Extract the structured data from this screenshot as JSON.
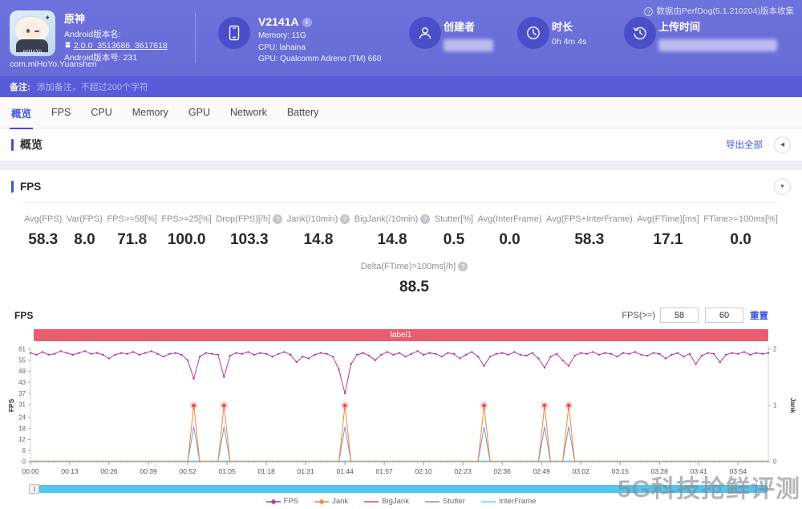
{
  "header": {
    "app": {
      "name": "原神",
      "version_label": "Android版本名:",
      "version_value": "2.0.0_3513686_3617618",
      "build_label": "Android版本号: 231",
      "package": "com.miHoYo.Yuanshen",
      "icon_brand": "miHoYo"
    },
    "device": {
      "model": "V2141A",
      "memory": "Memory: 11G",
      "cpu": "CPU: lahaina",
      "gpu": "GPU: Qualcomm Adreno (TM) 660"
    },
    "creator_label": "创建者",
    "duration_label": "时长",
    "duration_value": "0h 4m 4s",
    "upload_label": "上传时间",
    "source_note": "数据由PerfDog(5.1.210204)版本收集"
  },
  "remark": {
    "label": "备注:",
    "placeholder": "添加备注，不超过200个字符"
  },
  "tabs": [
    {
      "label": "概览",
      "active": true
    },
    {
      "label": "FPS",
      "active": false
    },
    {
      "label": "CPU",
      "active": false
    },
    {
      "label": "Memory",
      "active": false
    },
    {
      "label": "GPU",
      "active": false
    },
    {
      "label": "Network",
      "active": false
    },
    {
      "label": "Battery",
      "active": false
    }
  ],
  "overview": {
    "title": "概览",
    "export_label": "导出全部"
  },
  "fps_section": {
    "title": "FPS",
    "stats": [
      {
        "label": "Avg(FPS)",
        "value": "58.3",
        "help": false
      },
      {
        "label": "Var(FPS)",
        "value": "8.0",
        "help": false
      },
      {
        "label": "FPS>=58[%]",
        "value": "71.8",
        "help": false
      },
      {
        "label": "FPS>=25[%]",
        "value": "100.0",
        "help": false
      },
      {
        "label": "Drop(FPS)[/h]",
        "value": "103.3",
        "help": true
      },
      {
        "label": "Jank(/10min)",
        "value": "14.8",
        "help": true
      },
      {
        "label": "BigJank(/10min)",
        "value": "14.8",
        "help": true
      },
      {
        "label": "Stutter[%]",
        "value": "0.5",
        "help": false
      },
      {
        "label": "Avg(InterFrame)",
        "value": "0.0",
        "help": false
      },
      {
        "label": "Avg(FPS+InterFrame)",
        "value": "58.3",
        "help": false
      },
      {
        "label": "Avg(FTime)[ms]",
        "value": "17.1",
        "help": false
      },
      {
        "label": "FTime>=100ms[%]",
        "value": "0.0",
        "help": false
      }
    ],
    "stats_row2": [
      {
        "label": "Delta(FTime)>100ms[/h]",
        "value": "88.5",
        "help": true
      }
    ]
  },
  "chart": {
    "title": "FPS",
    "threshold_label": "FPS(>=)",
    "threshold_low": "58",
    "threshold_high": "60",
    "reset_label": "重置",
    "band_label": "label1",
    "band_color": "#e85e70",
    "scrollbar_color": "#54c5ee"
  },
  "chart_data": {
    "type": "line",
    "title": "FPS / Jank over session time",
    "x_unit": "seconds",
    "x_interval": 2,
    "x_max": 244,
    "x_tick_interval": 13,
    "x_tick_labels": [
      "00:00",
      "00:13",
      "00:26",
      "00:39",
      "00:52",
      "01:05",
      "01:18",
      "01:31",
      "01:44",
      "01:57",
      "02:10",
      "02:23",
      "02:36",
      "02:49",
      "03:02",
      "03:15",
      "03:28",
      "03:41",
      "03:54"
    ],
    "left_axis": {
      "label": "FPS",
      "max": 61,
      "ticks": [
        0,
        6,
        12,
        18,
        24,
        31,
        37,
        43,
        49,
        55,
        61
      ]
    },
    "right_axis": {
      "label": "Jank",
      "max": 2,
      "ticks": [
        0,
        1,
        2
      ]
    },
    "series": [
      {
        "name": "FPS",
        "color": "#b23a9c",
        "axis": "left",
        "marker": "diamond",
        "values": [
          59,
          58,
          59.5,
          58,
          58.5,
          60,
          59,
          58,
          59,
          60,
          58.5,
          59,
          58,
          56,
          58,
          59,
          58.5,
          59.5,
          58,
          59,
          60,
          58.5,
          57,
          58.5,
          59,
          58,
          55,
          45,
          57,
          59,
          58.5,
          58,
          46,
          57.5,
          59,
          58.5,
          59.5,
          58,
          59,
          58.5,
          57,
          58.5,
          59.5,
          58,
          54,
          57,
          56,
          58,
          59,
          58.5,
          57,
          50,
          37,
          53,
          58,
          59,
          57.5,
          55,
          58,
          59.5,
          58,
          59,
          57,
          58.5,
          60,
          58,
          59,
          58.5,
          57,
          59,
          58.5,
          56,
          58,
          59.5,
          57,
          52,
          57,
          58.5,
          59,
          58,
          59.5,
          58,
          57.5,
          59,
          56,
          51,
          57,
          58.5,
          55,
          52,
          57.5,
          59,
          58.5,
          59.5,
          58,
          59,
          58.5,
          57,
          59,
          58.5,
          59.5,
          58,
          57.5,
          59,
          58.5,
          56,
          58,
          59,
          57,
          58.5,
          53,
          57.5,
          59,
          58.5,
          54,
          58,
          59,
          58.5,
          59.5,
          58,
          59,
          58.5,
          59
        ]
      },
      {
        "name": "Jank",
        "color": "#f0883f",
        "axis": "right",
        "marker": "diamond",
        "spike_indices": [
          27,
          32,
          52,
          75,
          85,
          89
        ],
        "spike_value": 1,
        "base_value": 0
      },
      {
        "name": "BigJank",
        "color": "#e14b4b",
        "axis": "right",
        "marker": "glow-dot",
        "marker_only": true,
        "spike_indices": [
          27,
          32,
          52,
          75,
          85,
          89
        ],
        "spike_value": 1,
        "base_value": 0
      },
      {
        "name": "Stutter",
        "color": "#8095c5",
        "axis": "right",
        "marker": "none",
        "spike_indices": [
          27,
          32,
          52,
          75,
          85,
          89
        ],
        "spike_value": 0.62,
        "base_value": 0
      },
      {
        "name": "InterFrame",
        "color": "#6fd3ef",
        "axis": "right",
        "marker": "none",
        "flat_value": 0
      }
    ],
    "legend_position": "bottom-center",
    "grid": false
  },
  "watermark": "5G科技抢鲜评测"
}
